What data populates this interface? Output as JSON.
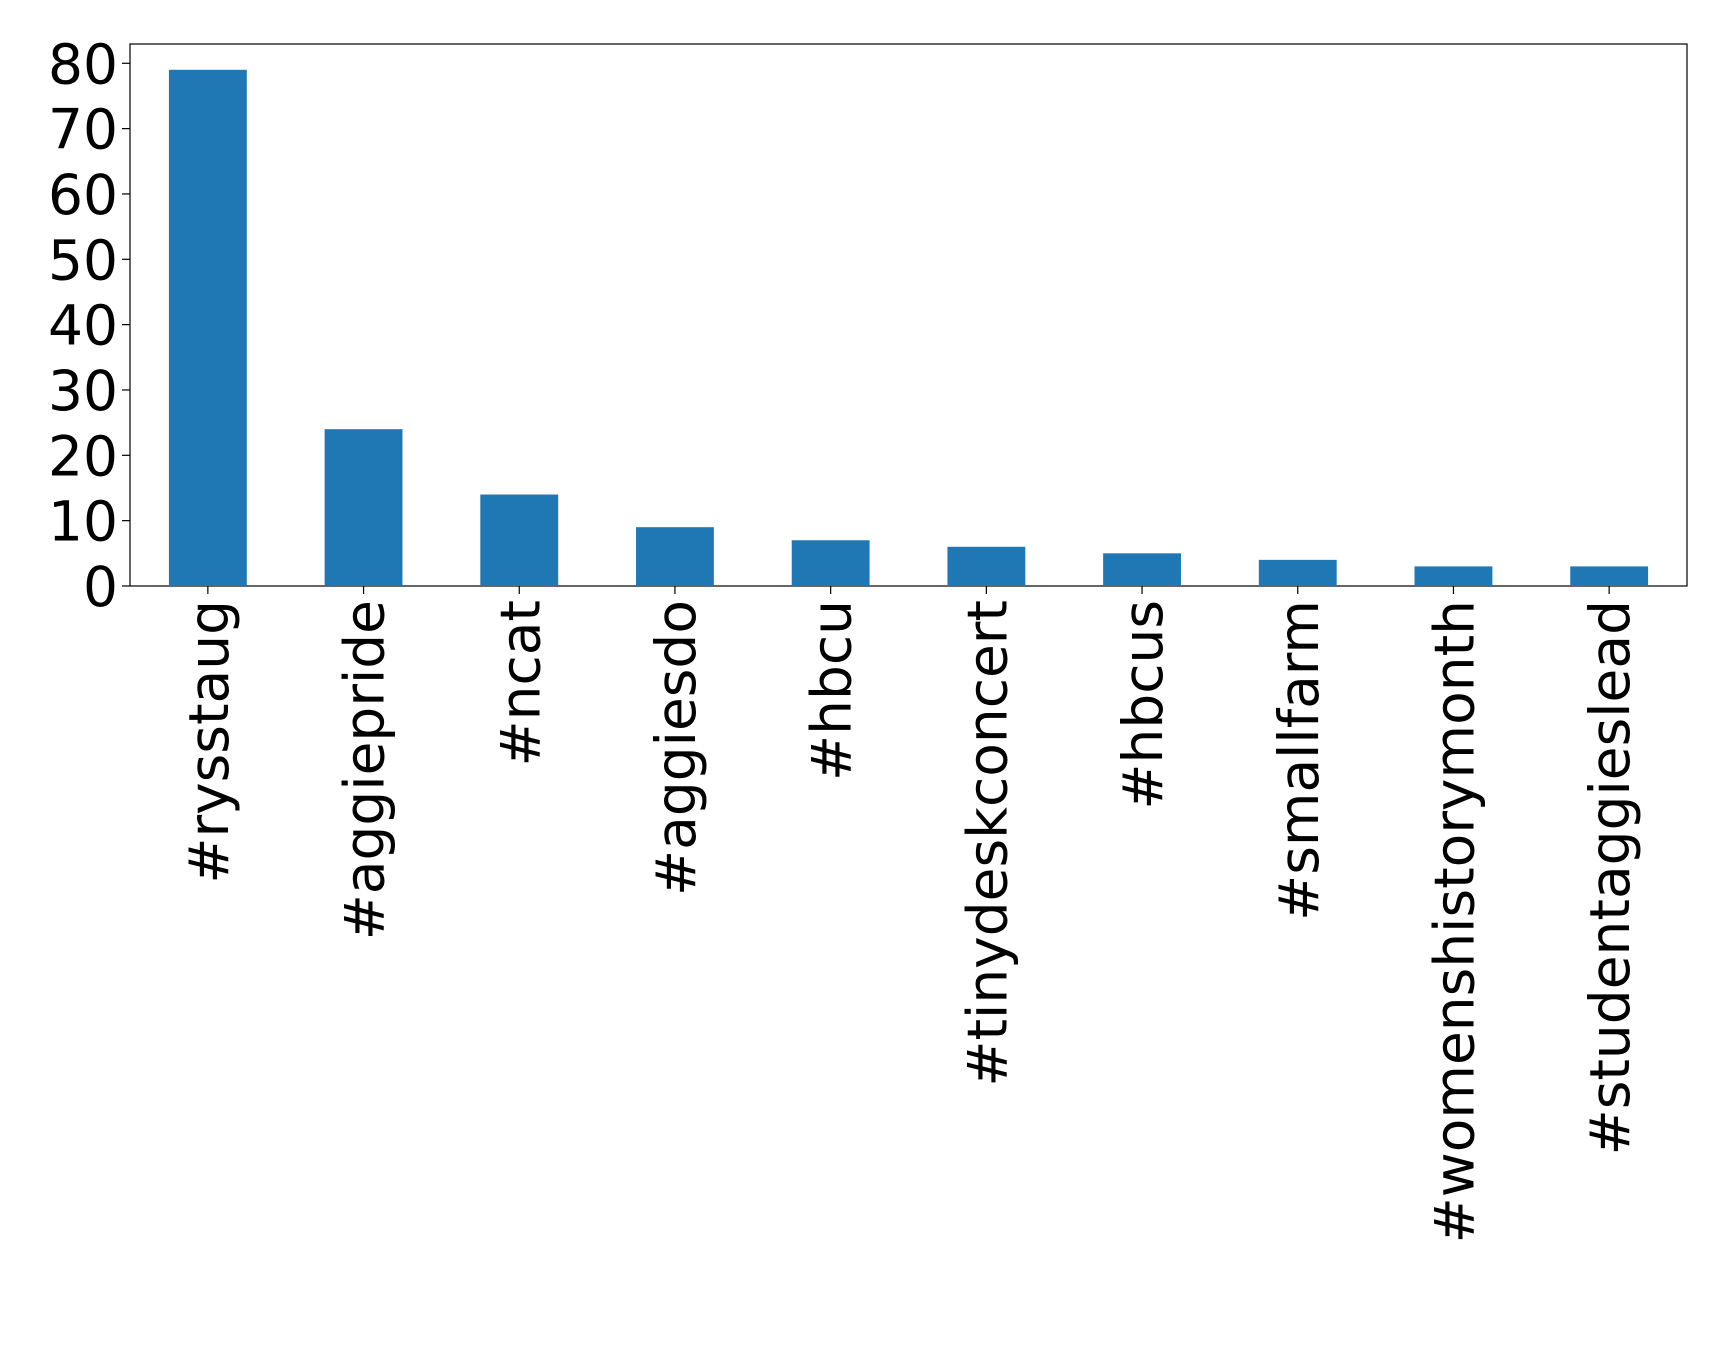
{
  "chart_data": {
    "type": "bar",
    "categories": [
      "#rysstaug",
      "#aggiepride",
      "#ncat",
      "#aggiesdo",
      "#hbcu",
      "#tinydeskconcert",
      "#hbcus",
      "#smallfarm",
      "#womenshistorymonth",
      "#studentaggieslead"
    ],
    "values": [
      79,
      24,
      14,
      9,
      7,
      6,
      5,
      4,
      3,
      3
    ],
    "color": "#1f77b4",
    "ylim": [
      0,
      82.95
    ],
    "yticks": [
      0,
      10,
      20,
      30,
      40,
      50,
      60,
      70,
      80
    ],
    "grid": false
  }
}
